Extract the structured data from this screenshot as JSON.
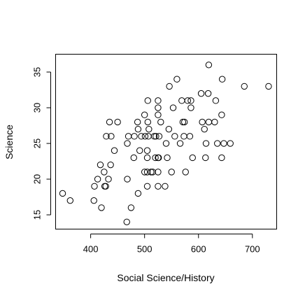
{
  "chart_data": {
    "type": "scatter",
    "title": "",
    "xlabel": "Social Science/History",
    "ylabel": "Science",
    "xlim": [
      335,
      745
    ],
    "ylim": [
      13,
      37.5
    ],
    "xticks": [
      400,
      500,
      600,
      700
    ],
    "yticks": [
      15,
      20,
      25,
      30,
      35
    ],
    "grid": false,
    "marker": "open-circle",
    "points": [
      [
        348,
        18
      ],
      [
        362,
        17
      ],
      [
        406,
        17
      ],
      [
        407,
        19
      ],
      [
        413,
        20
      ],
      [
        418,
        22
      ],
      [
        420,
        16
      ],
      [
        425,
        21
      ],
      [
        426,
        19
      ],
      [
        428,
        19
      ],
      [
        429,
        26
      ],
      [
        433,
        20
      ],
      [
        435,
        28
      ],
      [
        437,
        22
      ],
      [
        438,
        26
      ],
      [
        444,
        24
      ],
      [
        450,
        28
      ],
      [
        467,
        14
      ],
      [
        468,
        20
      ],
      [
        468,
        25
      ],
      [
        470,
        26
      ],
      [
        475,
        16
      ],
      [
        480,
        23
      ],
      [
        481,
        26
      ],
      [
        487,
        28
      ],
      [
        488,
        18
      ],
      [
        488,
        27
      ],
      [
        491,
        24
      ],
      [
        494,
        26
      ],
      [
        500,
        21
      ],
      [
        500,
        29
      ],
      [
        501,
        26
      ],
      [
        505,
        19
      ],
      [
        505,
        21
      ],
      [
        505,
        23
      ],
      [
        505,
        24
      ],
      [
        506,
        28
      ],
      [
        506,
        31
      ],
      [
        507,
        26
      ],
      [
        508,
        27
      ],
      [
        512,
        21
      ],
      [
        515,
        21
      ],
      [
        518,
        26
      ],
      [
        520,
        23
      ],
      [
        521,
        26
      ],
      [
        525,
        19
      ],
      [
        525,
        21
      ],
      [
        525,
        23
      ],
      [
        525,
        29
      ],
      [
        525,
        30
      ],
      [
        525,
        31
      ],
      [
        526,
        23
      ],
      [
        527,
        26
      ],
      [
        530,
        28
      ],
      [
        538,
        19
      ],
      [
        540,
        25
      ],
      [
        542,
        23
      ],
      [
        545,
        27
      ],
      [
        546,
        33
      ],
      [
        550,
        21
      ],
      [
        553,
        30
      ],
      [
        556,
        26
      ],
      [
        560,
        34
      ],
      [
        566,
        25
      ],
      [
        569,
        31
      ],
      [
        571,
        28
      ],
      [
        573,
        26
      ],
      [
        574,
        28
      ],
      [
        576,
        21
      ],
      [
        580,
        31
      ],
      [
        584,
        26
      ],
      [
        586,
        30
      ],
      [
        586,
        31
      ],
      [
        589,
        23
      ],
      [
        605,
        32
      ],
      [
        607,
        28
      ],
      [
        611,
        27
      ],
      [
        613,
        23
      ],
      [
        614,
        25
      ],
      [
        618,
        32
      ],
      [
        619,
        36
      ],
      [
        619,
        28
      ],
      [
        630,
        28
      ],
      [
        632,
        31
      ],
      [
        635,
        25
      ],
      [
        643,
        23
      ],
      [
        643,
        29
      ],
      [
        644,
        34
      ],
      [
        647,
        25
      ],
      [
        659,
        25
      ],
      [
        685,
        33
      ],
      [
        730,
        33
      ]
    ]
  }
}
